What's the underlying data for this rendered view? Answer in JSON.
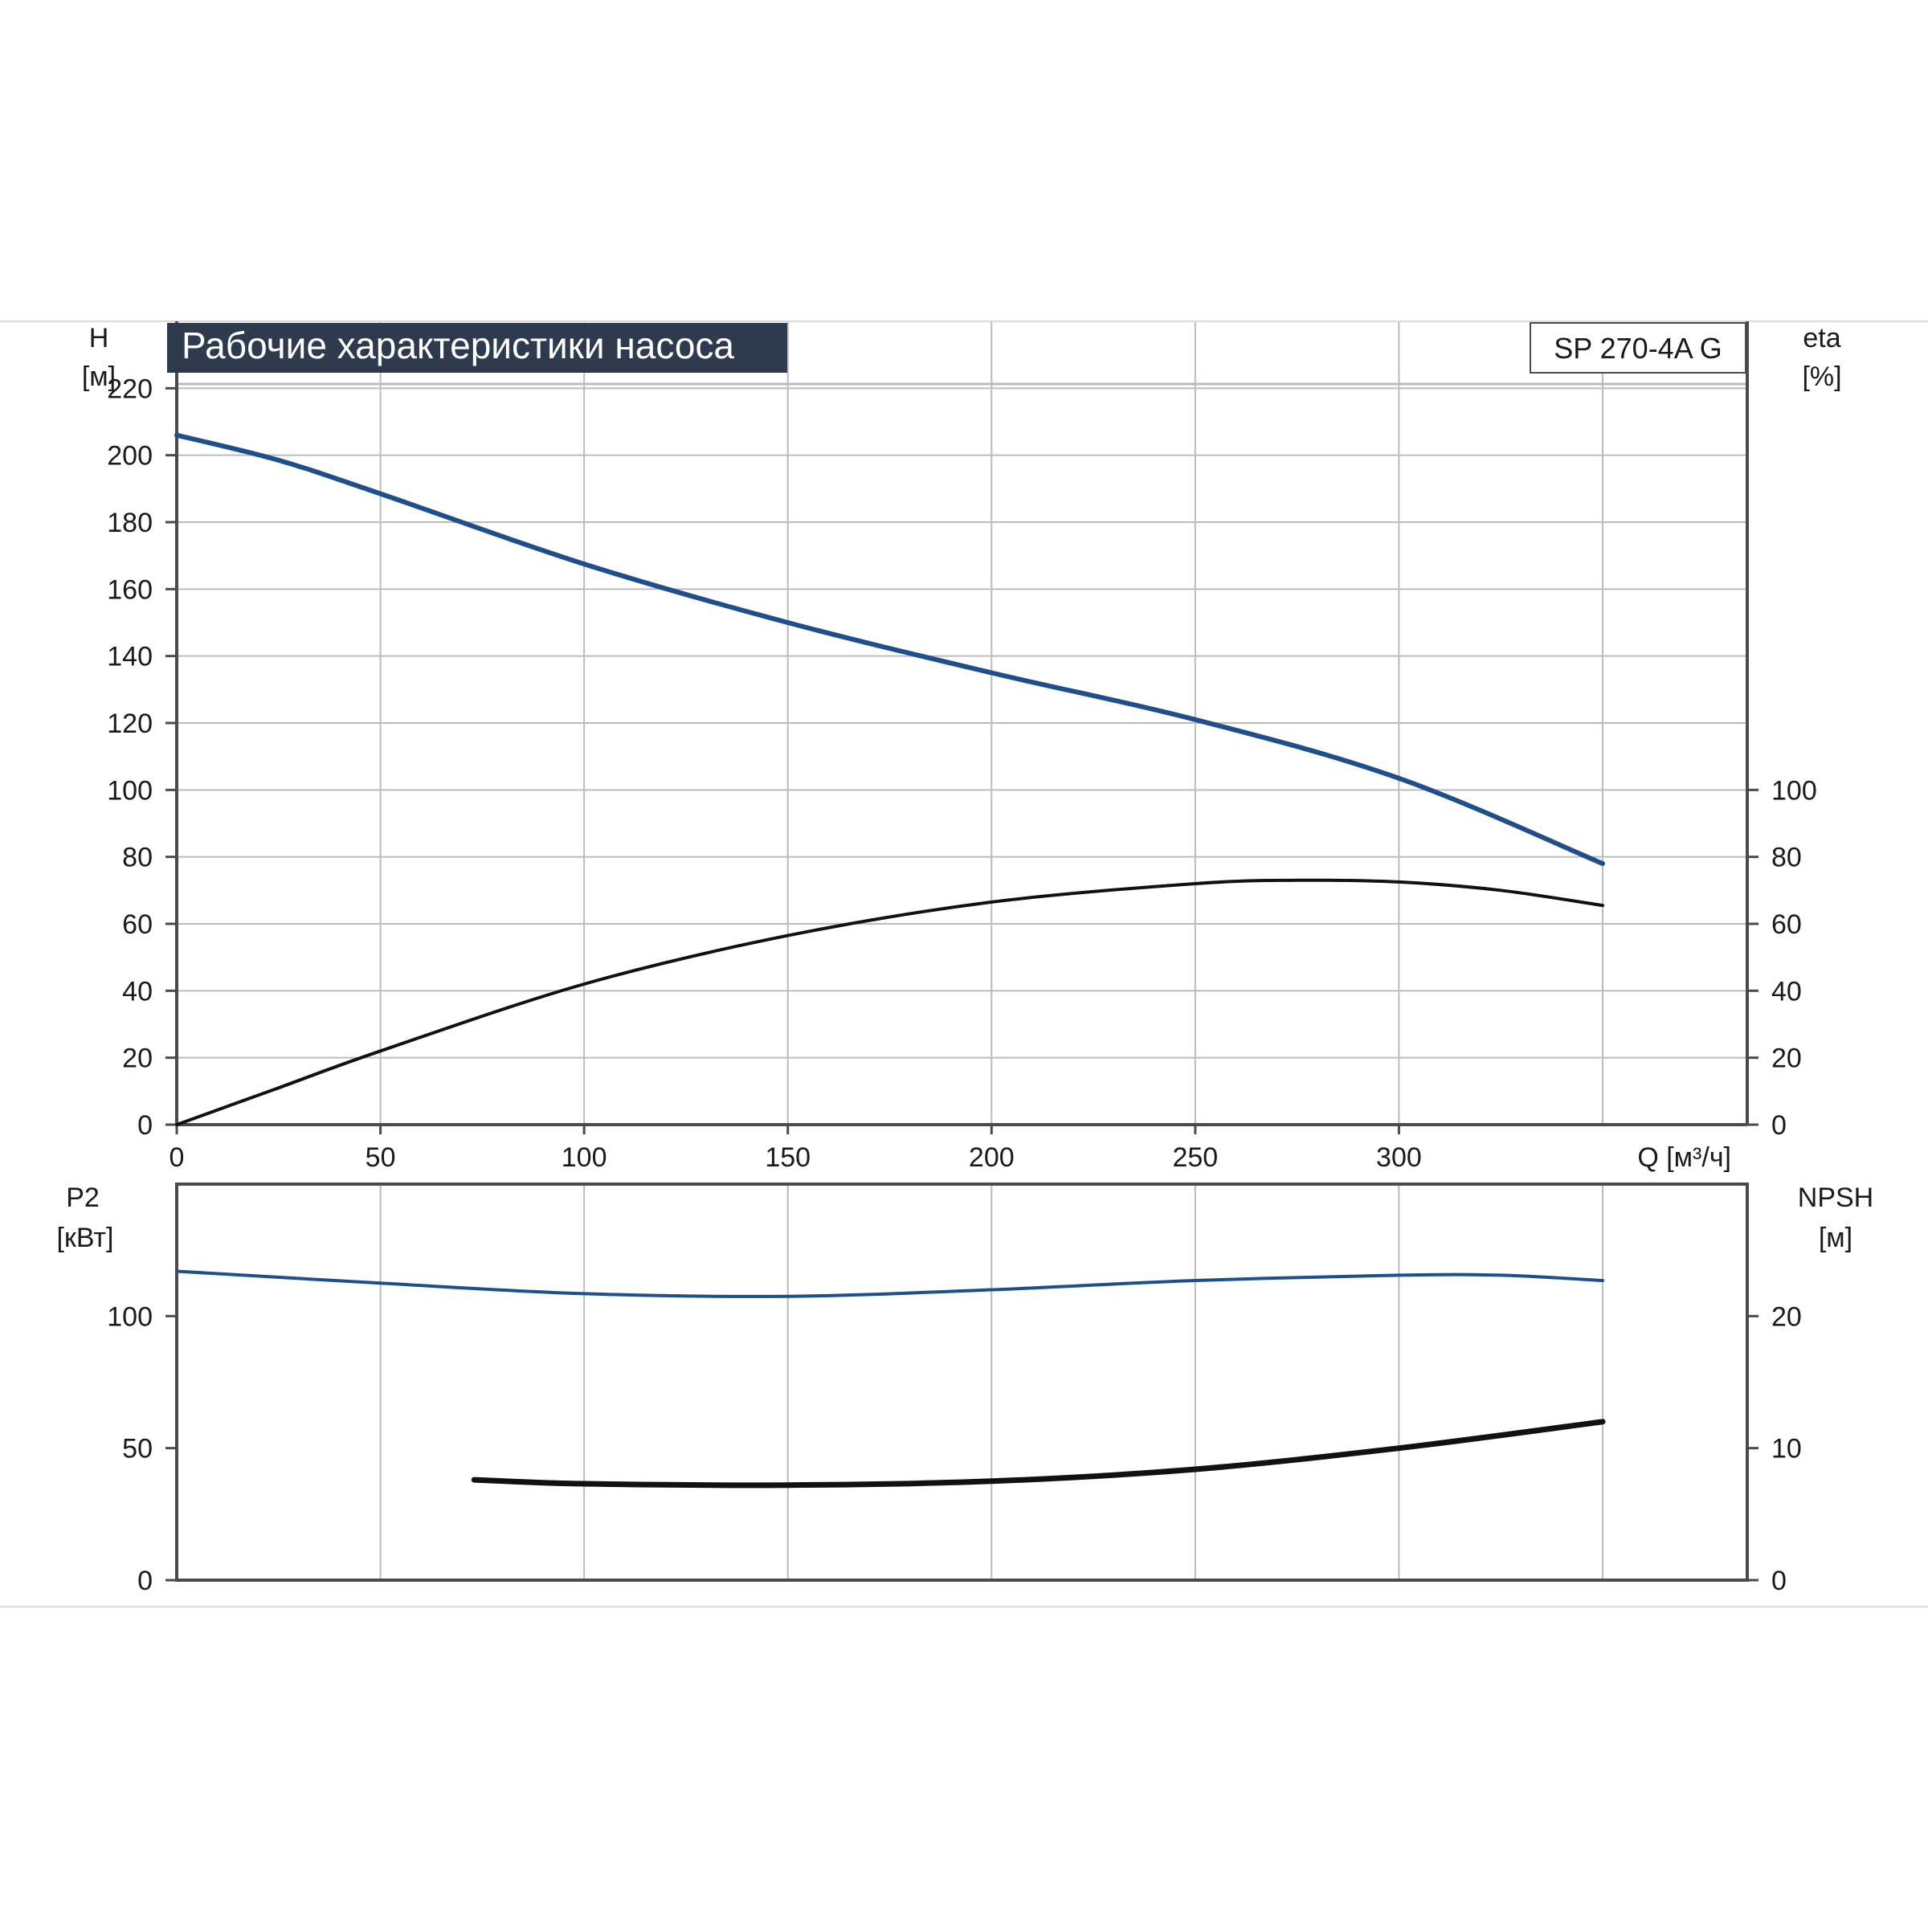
{
  "chart_data": {
    "title": "Рабочие характеристики насоса",
    "model": "SP 270-4A G",
    "colors": {
      "title_bg": "#2e3b4e",
      "title_fg": "#ffffff",
      "grid": "#b8bcc2",
      "axis": "#4a4a4a",
      "blue_curve": "#1f4e8c",
      "black_curve": "#111111"
    },
    "x_axis": {
      "label": "Q [м³/ч]",
      "ticks": [
        0,
        50,
        100,
        150,
        200,
        250,
        300
      ],
      "tick_labels": [
        "0",
        "50",
        "100",
        "150",
        "200",
        "250",
        "300"
      ],
      "range": [
        0,
        385
      ]
    },
    "top_panel": {
      "type": "line",
      "left_axis": {
        "label_line1": "H",
        "label_line2": "[м]",
        "ticks": [
          0,
          20,
          40,
          60,
          80,
          100,
          120,
          140,
          160,
          180,
          200,
          220
        ],
        "tick_labels": [
          "0",
          "20",
          "40",
          "60",
          "80",
          "100",
          "120",
          "140",
          "160",
          "180",
          "200",
          "220"
        ],
        "range": [
          0,
          240
        ]
      },
      "right_axis": {
        "label_line1": "eta",
        "label_line2": "[%]",
        "ticks": [
          0,
          20,
          40,
          60,
          80,
          100
        ],
        "tick_labels": [
          "0",
          "20",
          "40",
          "60",
          "80",
          "100"
        ],
        "range": [
          0,
          240
        ]
      },
      "series": [
        {
          "id": "head",
          "axis": "left",
          "x": [
            0,
            25,
            50,
            100,
            150,
            200,
            250,
            300,
            350
          ],
          "y": [
            206,
            198.5,
            188.5,
            167.5,
            150,
            135,
            121,
            103.5,
            78
          ]
        },
        {
          "id": "efficiency",
          "axis": "right",
          "x": [
            0,
            25,
            50,
            100,
            150,
            200,
            250,
            275,
            300,
            325,
            350
          ],
          "y": [
            0,
            11,
            22,
            42,
            56.5,
            66.5,
            72,
            73,
            72.5,
            70,
            65.5
          ]
        }
      ]
    },
    "bottom_panel": {
      "type": "line",
      "left_axis": {
        "label_line1": "P2",
        "label_line2": "[кВт]",
        "ticks": [
          0,
          50,
          100
        ],
        "tick_labels": [
          "0",
          "50",
          "100"
        ],
        "range": [
          0,
          150
        ]
      },
      "right_axis": {
        "label_line1": "NPSH",
        "label_line2": "[м]",
        "ticks": [
          0,
          10,
          20
        ],
        "tick_labels": [
          "0",
          "10",
          "20"
        ],
        "range": [
          0,
          30
        ]
      },
      "series": [
        {
          "id": "power_p2",
          "axis": "left",
          "x": [
            0,
            50,
            100,
            150,
            200,
            250,
            300,
            325,
            350
          ],
          "y": [
            117,
            112.5,
            108.5,
            107.5,
            110,
            113.5,
            115.5,
            115.5,
            113.5
          ]
        },
        {
          "id": "npsh",
          "axis": "right",
          "x": [
            73,
            100,
            150,
            200,
            250,
            300,
            350
          ],
          "y": [
            7.6,
            7.3,
            7.2,
            7.5,
            8.4,
            10,
            12
          ]
        }
      ]
    }
  }
}
